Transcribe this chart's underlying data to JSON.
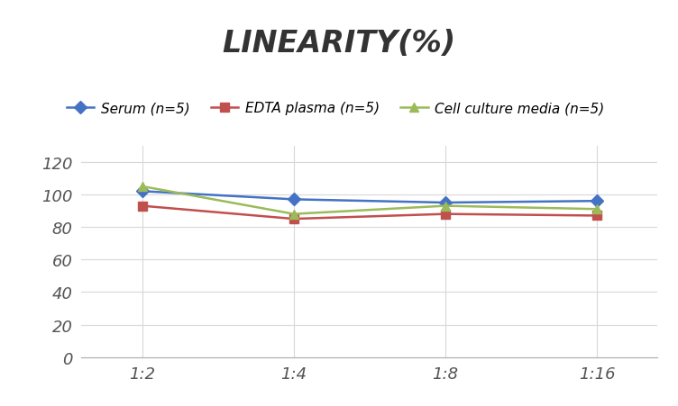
{
  "title": "LINEARITY(%)",
  "x_labels": [
    "1:2",
    "1:4",
    "1:8",
    "1:16"
  ],
  "x_positions": [
    0,
    1,
    2,
    3
  ],
  "series": [
    {
      "label": "Serum (n=5)",
      "values": [
        102,
        97,
        95,
        96
      ],
      "color": "#4472C4",
      "marker": "D",
      "linestyle": "-"
    },
    {
      "label": "EDTA plasma (n=5)",
      "values": [
        93,
        85,
        88,
        87
      ],
      "color": "#C0504D",
      "marker": "s",
      "linestyle": "-"
    },
    {
      "label": "Cell culture media (n=5)",
      "values": [
        105,
        88,
        93,
        91
      ],
      "color": "#9BBB59",
      "marker": "^",
      "linestyle": "-"
    }
  ],
  "ylim": [
    0,
    130
  ],
  "yticks": [
    0,
    20,
    40,
    60,
    80,
    100,
    120
  ],
  "background_color": "#ffffff",
  "grid_color": "#d8d8d8",
  "title_fontsize": 24,
  "legend_fontsize": 11,
  "tick_fontsize": 13
}
